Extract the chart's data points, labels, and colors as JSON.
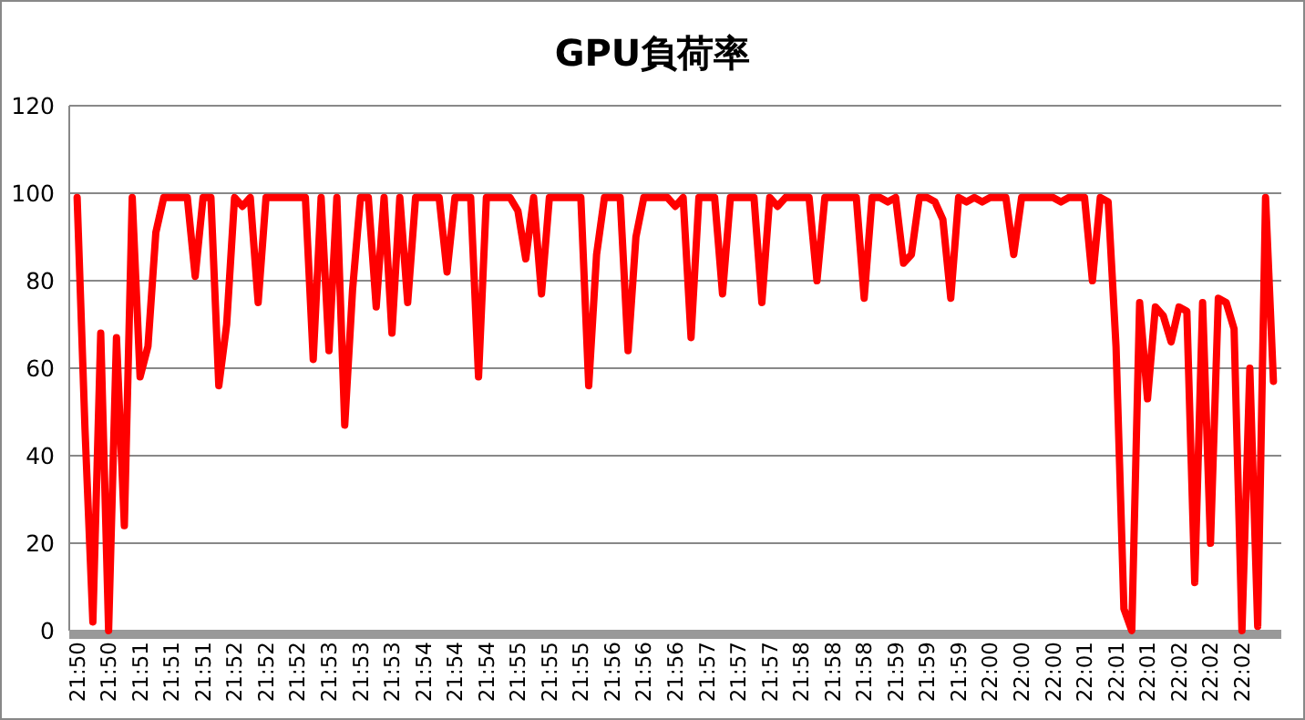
{
  "chart_data": {
    "type": "line",
    "title": "GPU負荷率",
    "categories": [
      "21:50",
      null,
      null,
      null,
      "21:50",
      null,
      null,
      null,
      "21:51",
      null,
      null,
      null,
      "21:51",
      null,
      null,
      null,
      "21:51",
      null,
      null,
      null,
      "21:52",
      null,
      null,
      null,
      "21:52",
      null,
      null,
      null,
      "21:52",
      null,
      null,
      null,
      "21:53",
      null,
      null,
      null,
      "21:53",
      null,
      null,
      null,
      "21:53",
      null,
      null,
      null,
      "21:54",
      null,
      null,
      null,
      "21:54",
      null,
      null,
      null,
      "21:54",
      null,
      null,
      null,
      "21:55",
      null,
      null,
      null,
      "21:55",
      null,
      null,
      null,
      "21:55",
      null,
      null,
      null,
      "21:56",
      null,
      null,
      null,
      "21:56",
      null,
      null,
      null,
      "21:56",
      null,
      null,
      null,
      "21:57",
      null,
      null,
      null,
      "21:57",
      null,
      null,
      null,
      "21:57",
      null,
      null,
      null,
      "21:58",
      null,
      null,
      null,
      "21:58",
      null,
      null,
      null,
      "21:58",
      null,
      null,
      null,
      "21:59",
      null,
      null,
      null,
      "21:59",
      null,
      null,
      null,
      "21:59",
      null,
      null,
      null,
      "22:00",
      null,
      null,
      null,
      "22:00",
      null,
      null,
      null,
      "22:00",
      null,
      null,
      null,
      "22:01",
      null,
      null,
      null,
      "22:01",
      null,
      null,
      null,
      "22:01",
      null,
      null,
      null,
      "22:02",
      null,
      null,
      null,
      "22:02",
      null,
      null,
      null,
      "22:02",
      null,
      null,
      null,
      null
    ],
    "values": [
      99,
      46,
      2,
      68,
      0,
      67,
      24,
      99,
      58,
      65,
      91,
      99,
      99,
      99,
      99,
      81,
      99,
      99,
      56,
      70,
      99,
      97,
      99,
      75,
      99,
      99,
      99,
      99,
      99,
      99,
      62,
      99,
      64,
      99,
      47,
      78,
      99,
      99,
      74,
      99,
      68,
      99,
      75,
      99,
      99,
      99,
      99,
      82,
      99,
      99,
      99,
      58,
      99,
      99,
      99,
      99,
      96,
      85,
      99,
      77,
      99,
      99,
      99,
      99,
      99,
      56,
      86,
      99,
      99,
      99,
      64,
      90,
      99,
      99,
      99,
      99,
      97,
      99,
      67,
      99,
      99,
      99,
      77,
      99,
      99,
      99,
      99,
      75,
      99,
      97,
      99,
      99,
      99,
      99,
      80,
      99,
      99,
      99,
      99,
      99,
      76,
      99,
      99,
      98,
      99,
      84,
      86,
      99,
      99,
      98,
      94,
      76,
      99,
      98,
      99,
      98,
      99,
      99,
      99,
      86,
      99,
      99,
      99,
      99,
      99,
      98,
      99,
      99,
      99,
      80,
      99,
      98,
      65,
      5,
      0,
      75,
      53,
      74,
      72,
      66,
      74,
      73,
      11,
      75,
      20,
      76,
      75,
      69,
      0,
      60,
      1,
      99,
      57
    ],
    "color": "#ff0000",
    "ylim": [
      0,
      120
    ],
    "yticks": [
      0,
      20,
      40,
      60,
      80,
      100,
      120
    ],
    "grid": "y"
  }
}
